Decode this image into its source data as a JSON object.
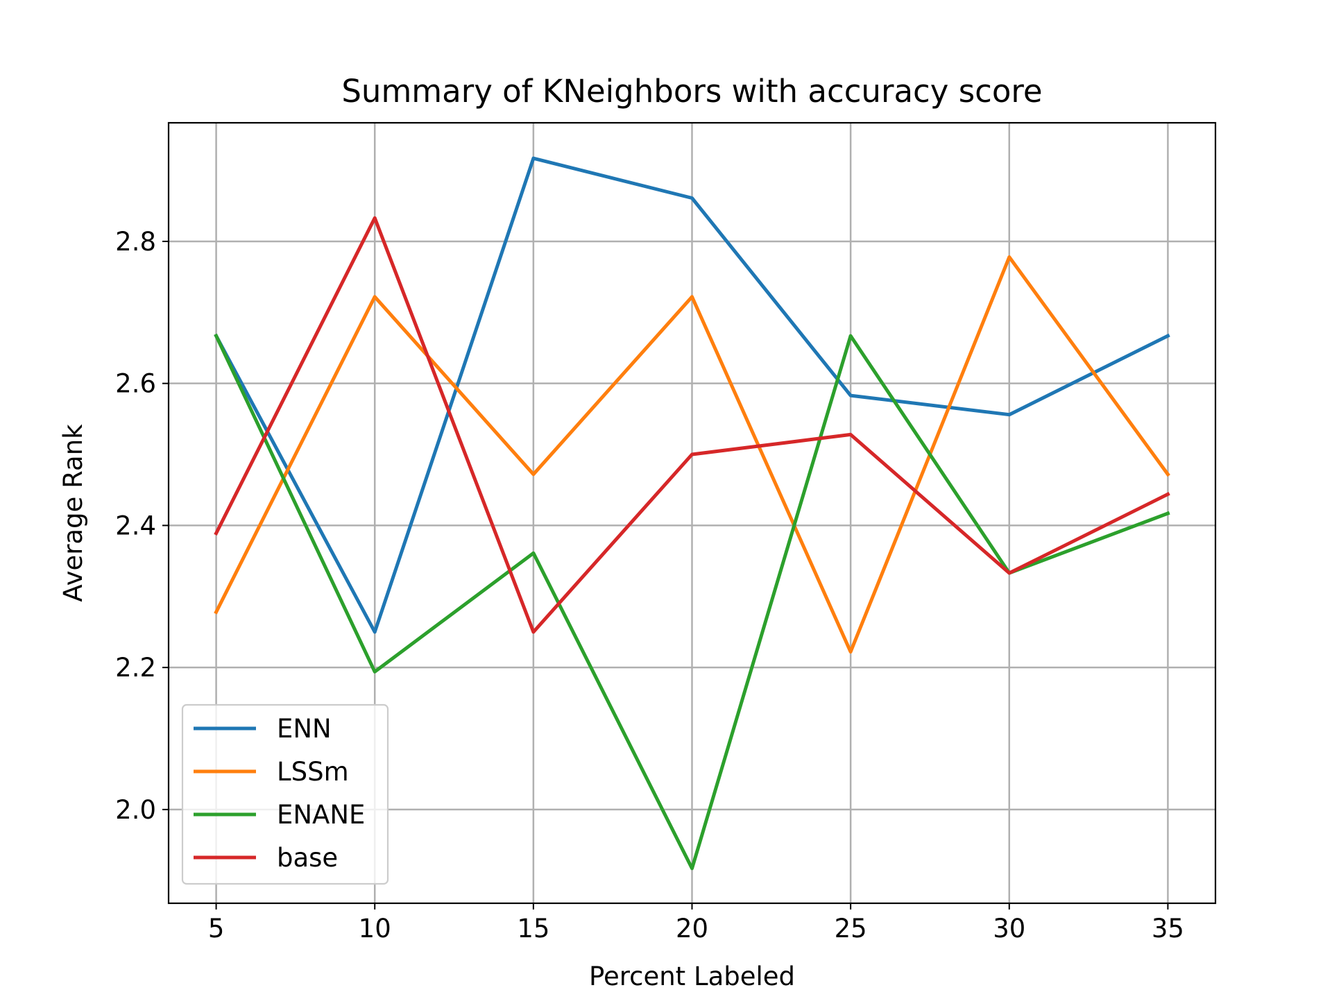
{
  "chart_data": {
    "type": "line",
    "title": "Summary of KNeighbors with accuracy score",
    "xlabel": "Percent Labeled",
    "ylabel": "Average Rank",
    "x": [
      5,
      10,
      15,
      20,
      25,
      30,
      35
    ],
    "xticks": [
      "5",
      "10",
      "15",
      "20",
      "25",
      "30",
      "35"
    ],
    "yticks": [
      "2.0",
      "2.2",
      "2.4",
      "2.6",
      "2.8"
    ],
    "ytick_values": [
      2.0,
      2.2,
      2.4,
      2.6,
      2.8
    ],
    "xlim": [
      3.5,
      36.5
    ],
    "ylim": [
      1.868,
      2.967
    ],
    "grid": true,
    "legend_position": "lower-left",
    "series": [
      {
        "name": "ENN",
        "color": "#1f77b4",
        "values": [
          2.667,
          2.25,
          2.917,
          2.861,
          2.583,
          2.556,
          2.667
        ]
      },
      {
        "name": "LSSm",
        "color": "#ff7f0e",
        "values": [
          2.278,
          2.722,
          2.472,
          2.722,
          2.222,
          2.778,
          2.472
        ]
      },
      {
        "name": "ENANE",
        "color": "#2ca02c",
        "values": [
          2.667,
          2.194,
          2.361,
          1.917,
          2.667,
          2.333,
          2.417
        ]
      },
      {
        "name": "base",
        "color": "#d62728",
        "values": [
          2.389,
          2.833,
          2.25,
          2.5,
          2.528,
          2.333,
          2.444
        ]
      }
    ]
  }
}
